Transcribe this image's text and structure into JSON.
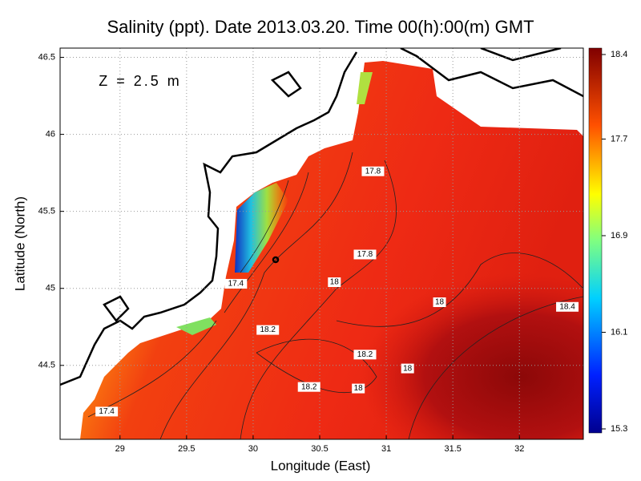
{
  "chart_data": {
    "type": "contour-map",
    "title": "Salinity (ppt). Date 2013.03.20. Time 00(h):00(m) GMT",
    "annotation": "Z = 2.5 m",
    "x_label": "Longitude (East)",
    "y_label": "Latitude (North)",
    "xlim": [
      28.55,
      32.48
    ],
    "ylim": [
      44.02,
      46.56
    ],
    "xticks": [
      29,
      29.5,
      30,
      30.5,
      31,
      31.5,
      32
    ],
    "yticks": [
      44.5,
      45,
      45.5,
      46,
      46.5
    ],
    "grid": true,
    "colorbar": {
      "lim": [
        15.3,
        18.4
      ],
      "ticks": [
        15.3,
        16.1,
        16.9,
        17.7,
        18.4
      ]
    },
    "contour_labels": [
      {
        "label": 17.8,
        "x": 30.9,
        "y": 45.76
      },
      {
        "label": 17.8,
        "x": 30.84,
        "y": 45.22
      },
      {
        "label": 18,
        "x": 30.61,
        "y": 45.04
      },
      {
        "label": 18,
        "x": 31.4,
        "y": 44.91
      },
      {
        "label": 18.4,
        "x": 32.36,
        "y": 44.88
      },
      {
        "label": 18.2,
        "x": 30.11,
        "y": 44.73
      },
      {
        "label": 18.2,
        "x": 30.84,
        "y": 44.57
      },
      {
        "label": 18,
        "x": 31.16,
        "y": 44.48
      },
      {
        "label": 18.2,
        "x": 30.42,
        "y": 44.36
      },
      {
        "label": 18,
        "x": 30.79,
        "y": 44.35
      },
      {
        "label": 17.4,
        "x": 28.9,
        "y": 44.2
      },
      {
        "label": 17.4,
        "x": 29.87,
        "y": 45.03
      }
    ]
  }
}
